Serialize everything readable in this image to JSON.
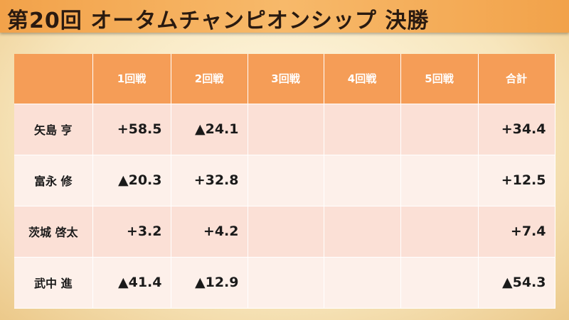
{
  "header": {
    "title": "第20回 オータムチャンピオンシップ 決勝"
  },
  "table": {
    "columns": [
      "1回戦",
      "2回戦",
      "3回戦",
      "4回戦",
      "5回戦",
      "合計"
    ],
    "rows": [
      {
        "name": "矢島 亨",
        "cells": [
          "+58.5",
          "▲24.1",
          null,
          null,
          null,
          "+34.4"
        ]
      },
      {
        "name": "富永 修",
        "cells": [
          "▲20.3",
          "+32.8",
          null,
          null,
          null,
          "+12.5"
        ]
      },
      {
        "name": "茨城 啓太",
        "cells": [
          "+3.2",
          "+4.2",
          null,
          null,
          null,
          "+7.4"
        ]
      },
      {
        "name": "武中 進",
        "cells": [
          "▲41.4",
          "▲12.9",
          null,
          null,
          null,
          "▲54.3"
        ]
      }
    ]
  }
}
